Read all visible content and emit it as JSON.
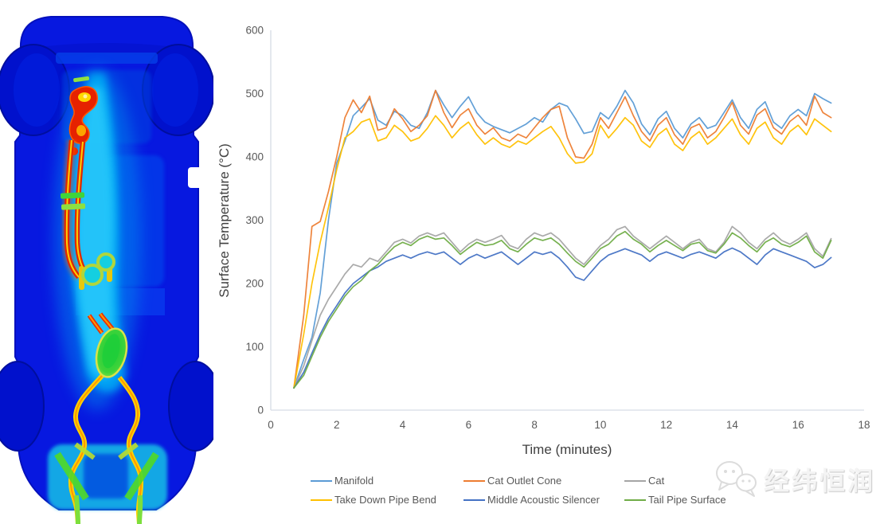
{
  "watermark": {
    "text": "经纬恒润",
    "icon": "wechat-chat-bubbles-icon"
  },
  "thermal_image": {
    "palette": {
      "body_blue": "#0718E0",
      "body_edge_blue": "#0410BC",
      "wheel_blue": "#0111CC",
      "panel_blue": "#0653F0",
      "cool_cyan": "#00B4F6",
      "bright_cyan": "#14CFE0",
      "warm_green": "#2FD334",
      "yellow_green": "#A8DC30",
      "hot_yellow": "#FFD800",
      "hot_orange": "#FF8A00",
      "hot_red": "#E62200"
    }
  },
  "chart": {
    "axis_color": "#d6dce5",
    "tick_color": "#595959",
    "title_color": "#404040"
  },
  "chart_data": {
    "type": "line",
    "title": "",
    "xlabel": "Time (minutes)",
    "ylabel": "Surface Temperature (°C)",
    "xlim": [
      0,
      18
    ],
    "ylim": [
      0,
      600
    ],
    "xticks": [
      0,
      2,
      4,
      6,
      8,
      10,
      12,
      14,
      16,
      18
    ],
    "yticks": [
      0,
      100,
      200,
      300,
      400,
      500,
      600
    ],
    "grid": false,
    "legend_position": "bottom",
    "legend_rows": [
      [
        0,
        1,
        2
      ],
      [
        3,
        4,
        5
      ]
    ],
    "x": [
      0.7,
      1,
      1.25,
      1.5,
      1.75,
      2,
      2.25,
      2.5,
      2.75,
      3,
      3.25,
      3.5,
      3.75,
      4,
      4.25,
      4.5,
      4.75,
      5,
      5.25,
      5.5,
      5.75,
      6,
      6.25,
      6.5,
      6.75,
      7,
      7.25,
      7.5,
      7.75,
      8,
      8.25,
      8.5,
      8.75,
      9,
      9.25,
      9.5,
      9.75,
      10,
      10.25,
      10.5,
      10.75,
      11,
      11.25,
      11.5,
      11.75,
      12,
      12.25,
      12.5,
      12.75,
      13,
      13.25,
      13.5,
      13.75,
      14,
      14.25,
      14.5,
      14.75,
      15,
      15.25,
      15.5,
      15.75,
      16,
      16.25,
      16.5,
      16.75,
      17
    ],
    "series": [
      {
        "name": "Manifold",
        "color": "#5B9BD5",
        "values": [
          35,
          80,
          115,
          185,
          300,
          390,
          425,
          465,
          478,
          492,
          458,
          450,
          472,
          465,
          450,
          445,
          470,
          505,
          482,
          462,
          480,
          495,
          470,
          455,
          448,
          443,
          438,
          445,
          452,
          462,
          455,
          475,
          485,
          480,
          460,
          437,
          440,
          470,
          460,
          480,
          505,
          485,
          452,
          435,
          460,
          472,
          445,
          430,
          452,
          462,
          445,
          450,
          470,
          490,
          462,
          445,
          475,
          487,
          455,
          445,
          465,
          475,
          465,
          500,
          492,
          485
        ]
      },
      {
        "name": "Cat Outlet Cone",
        "color": "#ED7D31",
        "values": [
          35,
          150,
          290,
          298,
          345,
          400,
          462,
          490,
          470,
          496,
          442,
          446,
          476,
          460,
          440,
          450,
          465,
          505,
          470,
          446,
          466,
          476,
          450,
          436,
          446,
          430,
          425,
          436,
          430,
          446,
          462,
          475,
          480,
          430,
          400,
          398,
          420,
          462,
          445,
          470,
          495,
          465,
          440,
          425,
          450,
          462,
          435,
          420,
          446,
          452,
          430,
          440,
          462,
          486,
          450,
          436,
          466,
          476,
          446,
          436,
          456,
          466,
          450,
          496,
          470,
          462
        ]
      },
      {
        "name": "Cat",
        "color": "#A5A5A5",
        "values": [
          35,
          70,
          110,
          150,
          175,
          195,
          215,
          230,
          226,
          240,
          235,
          250,
          265,
          270,
          264,
          275,
          280,
          275,
          280,
          265,
          250,
          262,
          270,
          265,
          270,
          276,
          260,
          255,
          270,
          280,
          275,
          280,
          270,
          255,
          240,
          230,
          245,
          260,
          270,
          285,
          290,
          275,
          265,
          255,
          265,
          275,
          265,
          255,
          265,
          270,
          255,
          250,
          265,
          290,
          280,
          265,
          255,
          270,
          280,
          268,
          262,
          270,
          280,
          255,
          243,
          271
        ]
      },
      {
        "name": "Take Down Pipe Bend",
        "color": "#FFC000",
        "values": [
          35,
          120,
          200,
          265,
          320,
          380,
          430,
          440,
          455,
          460,
          425,
          430,
          450,
          440,
          425,
          430,
          445,
          465,
          450,
          430,
          445,
          455,
          435,
          420,
          430,
          420,
          415,
          425,
          420,
          430,
          440,
          448,
          430,
          405,
          390,
          392,
          405,
          450,
          430,
          445,
          462,
          450,
          425,
          415,
          435,
          445,
          420,
          410,
          430,
          440,
          420,
          430,
          445,
          460,
          435,
          420,
          445,
          455,
          430,
          420,
          440,
          450,
          435,
          460,
          450,
          440
        ]
      },
      {
        "name": "Middle Acoustic Silencer",
        "color": "#4472C4",
        "values": [
          35,
          60,
          90,
          120,
          145,
          165,
          185,
          200,
          210,
          220,
          226,
          235,
          240,
          245,
          240,
          246,
          250,
          246,
          250,
          240,
          230,
          240,
          246,
          240,
          245,
          250,
          240,
          230,
          240,
          250,
          246,
          250,
          240,
          226,
          210,
          205,
          220,
          235,
          245,
          250,
          255,
          250,
          245,
          235,
          245,
          250,
          245,
          240,
          246,
          250,
          245,
          240,
          250,
          256,
          250,
          240,
          230,
          245,
          255,
          250,
          245,
          240,
          235,
          225,
          230,
          241
        ]
      },
      {
        "name": "Tail Pipe Surface",
        "color": "#70AD47",
        "values": [
          35,
          55,
          85,
          115,
          140,
          160,
          180,
          195,
          205,
          220,
          230,
          245,
          258,
          265,
          260,
          270,
          275,
          270,
          272,
          260,
          246,
          256,
          265,
          260,
          262,
          268,
          255,
          250,
          262,
          272,
          268,
          272,
          262,
          248,
          235,
          226,
          240,
          255,
          262,
          275,
          282,
          270,
          262,
          250,
          260,
          268,
          260,
          252,
          262,
          265,
          252,
          248,
          262,
          280,
          272,
          260,
          250,
          265,
          272,
          262,
          258,
          265,
          275,
          250,
          240,
          268
        ]
      }
    ]
  }
}
